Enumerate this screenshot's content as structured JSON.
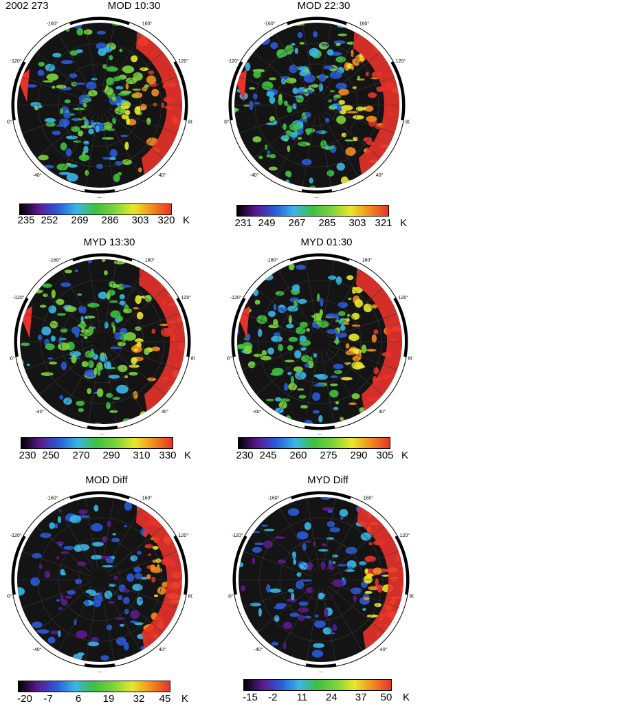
{
  "header": {
    "date_label": "2002 273"
  },
  "colors": {
    "ramp": [
      "#000000",
      "#5b1a8f",
      "#2a5ad8",
      "#39b6e6",
      "#3fbf3f",
      "#7cd33b",
      "#e8e82a",
      "#f08c1e",
      "#e8322a"
    ]
  },
  "panels": [
    {
      "title": "MOD 10:30",
      "ticks": [
        "235",
        "252",
        "269",
        "286",
        "303",
        "320"
      ],
      "unit": "K",
      "lon_labels": {
        "n160w": "-160°",
        "n160e": "160°",
        "w120": "-120°",
        "e120": "120°",
        "w80": "-80°",
        "e80": "80°",
        "w40": "-40°",
        "e40": "40°",
        "z0": "0°"
      }
    },
    {
      "title": "MOD 22:30",
      "ticks": [
        "231",
        "249",
        "267",
        "285",
        "303",
        "321"
      ],
      "unit": "K",
      "lon_labels": {
        "n160w": "-160°",
        "n160e": "160°",
        "w120": "-120°",
        "e120": "120°",
        "w80": "-80°",
        "e80": "80°",
        "w40": "-40°",
        "e40": "40°",
        "z0": "0°"
      }
    },
    {
      "title": "MYD 13:30",
      "ticks": [
        "230",
        "250",
        "270",
        "290",
        "310",
        "330"
      ],
      "unit": "K",
      "lon_labels": {
        "n160w": "-160°",
        "n160e": "160°",
        "w120": "-120°",
        "e120": "120°",
        "w80": "-80°",
        "e80": "80°",
        "w40": "-40°",
        "e40": "40°",
        "z0": "0°"
      }
    },
    {
      "title": "MYD 01:30",
      "ticks": [
        "230",
        "245",
        "260",
        "275",
        "290",
        "305"
      ],
      "unit": "K",
      "lon_labels": {
        "n160w": "-160°",
        "n160e": "160°",
        "w120": "-120°",
        "e120": "120°",
        "w80": "-80°",
        "e80": "80°",
        "w40": "-40°",
        "e40": "40°",
        "z0": "0°"
      }
    },
    {
      "title": "MOD Diff",
      "ticks": [
        "-20",
        "-7",
        "6",
        "19",
        "32",
        "45"
      ],
      "unit": "K",
      "lon_labels": {
        "n160w": "-160°",
        "n160e": "160°",
        "w120": "-120°",
        "e120": "120°",
        "w80": "-80°",
        "e80": "80°",
        "w40": "-40°",
        "e40": "40°",
        "z0": "0°"
      }
    },
    {
      "title": "MYD Diff",
      "ticks": [
        "-15",
        "-2",
        "11",
        "24",
        "37",
        "50"
      ],
      "unit": "K",
      "lon_labels": {
        "n160w": "-160°",
        "n160e": "160°",
        "w120": "-120°",
        "e120": "120°",
        "w80": "-80°",
        "e80": "80°",
        "w40": "-40°",
        "e40": "40°",
        "z0": "0°"
      }
    }
  ]
}
